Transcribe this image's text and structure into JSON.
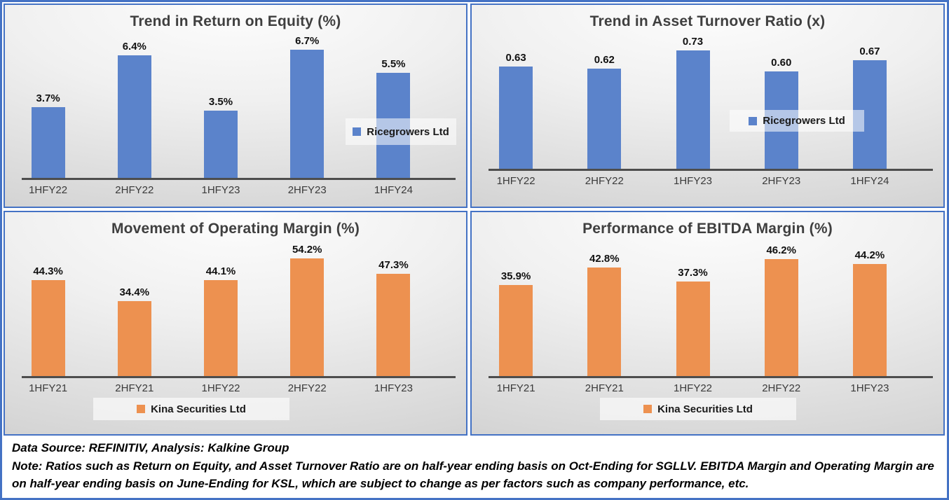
{
  "colors": {
    "frame_border_blue": "#4472C4",
    "bar_blue": "#5B83CB",
    "bar_orange": "#ED9150",
    "axis_gray": "#4D4D4D",
    "title_gray": "#3F3F3F"
  },
  "footer": {
    "source_line": "Data Source: REFINITIV, Analysis: Kalkine Group",
    "note_line": "Note: Ratios such as Return on Equity, and Asset Turnover Ratio are on half-year ending basis on Oct-Ending for SGLLV. EBITDA Margin and Operating Margin are on half-year ending basis on June-Ending for KSL, which are subject to change as per factors such as company performance, etc."
  },
  "chart_data": [
    {
      "type": "bar",
      "title": "Trend in Return on Equity (%)",
      "categories": [
        "1HFY22",
        "2HFY22",
        "1HFY23",
        "2HFY23",
        "1HFY24"
      ],
      "values": [
        3.7,
        6.4,
        3.5,
        6.7,
        5.5
      ],
      "value_labels": [
        "3.7%",
        "6.4%",
        "3.5%",
        "6.7%",
        "5.5%"
      ],
      "series_name": "Ricegrowers Ltd",
      "bar_color": "#5B83CB",
      "xlabel": "",
      "ylabel": "",
      "ylim": [
        0,
        7.5
      ],
      "grid": false,
      "legend_position": "overlay-right"
    },
    {
      "type": "bar",
      "title": "Trend in Asset Turnover Ratio (x)",
      "categories": [
        "1HFY22",
        "2HFY22",
        "1HFY23",
        "2HFY23",
        "1HFY24"
      ],
      "values": [
        0.63,
        0.62,
        0.73,
        0.6,
        0.67
      ],
      "value_labels": [
        "0.63",
        "0.62",
        "0.73",
        "0.60",
        "0.67"
      ],
      "series_name": "Ricegrowers Ltd",
      "bar_color": "#5B83CB",
      "xlabel": "",
      "ylabel": "",
      "ylim": [
        0,
        0.83
      ],
      "grid": false,
      "legend_position": "overlay-center-right"
    },
    {
      "type": "bar",
      "title": "Movement of Operating Margin (%)",
      "categories": [
        "1HFY21",
        "2HFY21",
        "1HFY22",
        "2HFY22",
        "1HFY23"
      ],
      "values": [
        44.3,
        34.4,
        44.1,
        54.2,
        47.3
      ],
      "value_labels": [
        "44.3%",
        "34.4%",
        "44.1%",
        "54.2%",
        "47.3%"
      ],
      "series_name": "Kina Securities Ltd",
      "bar_color": "#ED9150",
      "xlabel": "",
      "ylabel": "",
      "ylim": [
        0,
        62
      ],
      "grid": false,
      "legend_position": "bottom-center"
    },
    {
      "type": "bar",
      "title": "Performance of EBITDA Margin (%)",
      "categories": [
        "1HFY21",
        "2HFY21",
        "1HFY22",
        "2HFY22",
        "1HFY23"
      ],
      "values": [
        35.9,
        42.8,
        37.3,
        46.2,
        44.2
      ],
      "value_labels": [
        "35.9%",
        "42.8%",
        "37.3%",
        "46.2%",
        "44.2%"
      ],
      "series_name": "Kina Securities Ltd",
      "bar_color": "#ED9150",
      "xlabel": "",
      "ylabel": "",
      "ylim": [
        0,
        53
      ],
      "grid": false,
      "legend_position": "bottom-center"
    }
  ]
}
